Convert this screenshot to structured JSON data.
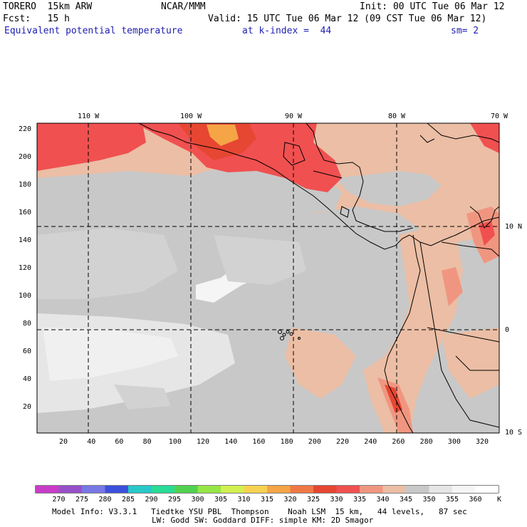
{
  "header": {
    "model": "TORERO  15km ARW",
    "center": "NCAR/MMM",
    "init": "Init: 00 UTC Tue 06 Mar 12",
    "fcst": "Fcst:   15 h",
    "valid": "Valid: 15 UTC Tue 06 Mar 12 (09 CST Tue 06 Mar 12)",
    "field": "Equivalent potential temperature",
    "level": "at k-index =  44",
    "smooth": "sm= 2"
  },
  "map": {
    "lon_labels": [
      "110 W",
      "100 W",
      "90 W",
      "80 W",
      "70 W"
    ],
    "lat_labels": [
      "10 N",
      "0",
      "10 S"
    ],
    "x_ticks": [
      "20",
      "40",
      "60",
      "80",
      "100",
      "120",
      "140",
      "160",
      "180",
      "200",
      "220",
      "240",
      "260",
      "280",
      "300",
      "320"
    ],
    "y_ticks": [
      "220",
      "200",
      "180",
      "160",
      "140",
      "120",
      "100",
      "80",
      "60",
      "40",
      "20"
    ]
  },
  "colorbar": {
    "levels": [
      "270",
      "275",
      "280",
      "285",
      "290",
      "295",
      "300",
      "305",
      "310",
      "315",
      "320",
      "325",
      "330",
      "335",
      "340",
      "345",
      "350",
      "355",
      "360"
    ],
    "unit": "K",
    "colors": [
      "#c83cc8",
      "#9650c8",
      "#7878e6",
      "#3c50dc",
      "#28c8c8",
      "#28dc96",
      "#50d250",
      "#96e646",
      "#d2f050",
      "#f5d250",
      "#f5a546",
      "#f07846",
      "#e64632",
      "#f05050",
      "#f09680",
      "#ebbea5",
      "#c8c8c8",
      "#e6e6e6",
      "#f5f5f5",
      "#ffffff"
    ]
  },
  "footer": {
    "line1": "Model Info: V3.3.1   Tiedtke YSU PBL  Thompson    Noah LSM  15 km,   44 levels,   87 sec",
    "line2": "LW: Godd SW: Goddard DIFF: simple KM: 2D Smagor"
  }
}
